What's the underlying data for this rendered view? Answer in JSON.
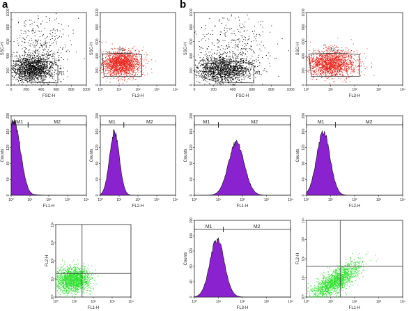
{
  "panel_letters": [
    "a",
    "b"
  ],
  "chart_data": [
    {
      "id": "a1",
      "type": "scatter",
      "xlabel": "FSC-H",
      "ylabel": "SSC-H",
      "xlim": [
        0,
        1000
      ],
      "ylim": [
        0,
        1000
      ],
      "xticks": [
        "0",
        "200",
        "400",
        "600",
        "800",
        "1000"
      ],
      "yticks": [
        "0",
        "200",
        "400",
        "600",
        "800",
        "1000"
      ],
      "gate": "R1",
      "cloud": {
        "center": [
          280,
          230
        ],
        "spread": [
          140,
          90
        ],
        "sparse_center": [
          380,
          520
        ],
        "sparse_spread": [
          200,
          230
        ]
      },
      "colors": {
        "dots": "#000000"
      }
    },
    {
      "id": "a2",
      "type": "scatter",
      "xscale": "log",
      "xlabel": "FL3-H",
      "ylabel": "SSC-H",
      "xlim": [
        0,
        4
      ],
      "ylim": [
        0,
        1000
      ],
      "xticks": [
        "10⁰",
        "10¹",
        "10²",
        "10³",
        "10⁴"
      ],
      "yticks": [
        "0",
        "200",
        "400",
        "600",
        "800",
        "1000"
      ],
      "gate": "R2",
      "cloud": {
        "center": [
          1.1,
          300
        ],
        "spread": [
          0.5,
          90
        ]
      },
      "colors": {
        "dots": "#e8241a"
      }
    },
    {
      "id": "a3",
      "type": "histogram",
      "xscale": "log",
      "xlabel": "FL1-H",
      "ylabel": "Counts",
      "xlim": [
        0,
        4
      ],
      "ylim": [
        0,
        200
      ],
      "xticks": [
        "10⁰",
        "10¹",
        "10²",
        "10³",
        "10⁴"
      ],
      "yticks": [
        "0",
        "40",
        "80",
        "120",
        "160",
        "200"
      ],
      "markers": [
        {
          "name": "M1",
          "range": [
            0.0,
            0.9
          ]
        },
        {
          "name": "M2",
          "range": [
            0.9,
            4.0
          ]
        }
      ],
      "peak": {
        "center": 0.15,
        "width": 0.35,
        "height": 185,
        "tail": 0.25
      },
      "colors": {
        "fill": "#8a22d0"
      }
    },
    {
      "id": "a4",
      "type": "histogram",
      "xscale": "log",
      "xlabel": "FL2-H",
      "ylabel": "Counts",
      "xlim": [
        0,
        4
      ],
      "ylim": [
        0,
        200
      ],
      "xticks": [
        "10⁰",
        "10¹",
        "10²",
        "10³",
        "10⁴"
      ],
      "yticks": [
        "0",
        "40",
        "80",
        "120",
        "160",
        "200"
      ],
      "markers": [
        {
          "name": "M1",
          "range": [
            0.0,
            1.25
          ]
        },
        {
          "name": "M2",
          "range": [
            1.25,
            4.0
          ]
        }
      ],
      "peak": {
        "center": 0.75,
        "width": 0.26,
        "height": 158,
        "tail": 0.0
      },
      "colors": {
        "fill": "#8a22d0"
      }
    },
    {
      "id": "a5",
      "type": "scatter",
      "xscale": "log",
      "yscale": "log",
      "xlabel": "FL1-H",
      "ylabel": "FL2-H",
      "xlim": [
        0,
        4
      ],
      "ylim": [
        0,
        4
      ],
      "xticks": [
        "10⁰",
        "10¹",
        "10²",
        "10³",
        "10⁴"
      ],
      "yticks": [
        "10⁰",
        "10¹",
        "10²",
        "10³",
        "10⁴"
      ],
      "quadrant": [
        1.4,
        1.3
      ],
      "cloud": {
        "center": [
          0.9,
          0.95
        ],
        "spread": [
          0.45,
          0.35
        ]
      },
      "colors": {
        "dots": "#2de02d"
      }
    },
    {
      "id": "b1",
      "type": "scatter",
      "xlabel": "FSC-H",
      "ylabel": "SSC-H",
      "xlim": [
        0,
        1000
      ],
      "ylim": [
        0,
        1000
      ],
      "xticks": [
        "0",
        "200",
        "400",
        "600",
        "800",
        "1000"
      ],
      "yticks": [
        "0",
        "200",
        "400",
        "600",
        "800",
        "1000"
      ],
      "gate": "R1",
      "cloud": {
        "center": [
          300,
          220
        ],
        "spread": [
          150,
          90
        ],
        "sparse_center": [
          400,
          500
        ],
        "sparse_spread": [
          220,
          230
        ]
      },
      "colors": {
        "dots": "#000000"
      }
    },
    {
      "id": "b2",
      "type": "scatter",
      "xscale": "log",
      "xlabel": "FL3-H",
      "ylabel": "SSC-H",
      "xlim": [
        0,
        4
      ],
      "ylim": [
        0,
        1000
      ],
      "xticks": [
        "10⁰",
        "10¹",
        "10²",
        "10³",
        "10⁴"
      ],
      "yticks": [
        "0",
        "200",
        "400",
        "600",
        "800",
        "1000"
      ],
      "gate": "R2",
      "cloud": {
        "center": [
          1.0,
          300
        ],
        "spread": [
          0.55,
          95
        ]
      },
      "colors": {
        "dots": "#e8241a"
      }
    },
    {
      "id": "b3",
      "type": "histogram",
      "xscale": "log",
      "xlabel": "FL1-H",
      "ylabel": "Counts",
      "xlim": [
        0,
        4
      ],
      "ylim": [
        0,
        200
      ],
      "xticks": [
        "10⁰",
        "10¹",
        "10²",
        "10³",
        "10⁴"
      ],
      "yticks": [
        "0",
        "40",
        "80",
        "120",
        "160",
        "200"
      ],
      "markers": [
        {
          "name": "M1",
          "range": [
            0.0,
            1.0
          ]
        },
        {
          "name": "M2",
          "range": [
            1.0,
            4.0
          ]
        }
      ],
      "peak": {
        "center": 1.75,
        "width": 0.33,
        "height": 132,
        "tail": 0.0
      },
      "colors": {
        "fill": "#8a22d0"
      }
    },
    {
      "id": "b4",
      "type": "histogram",
      "xscale": "log",
      "xlabel": "FL2-H",
      "ylabel": "Counts",
      "xlim": [
        0,
        4
      ],
      "ylim": [
        0,
        200
      ],
      "xticks": [
        "10⁰",
        "10¹",
        "10²",
        "10³",
        "10⁴"
      ],
      "yticks": [
        "0",
        "40",
        "80",
        "120",
        "160",
        "200"
      ],
      "markers": [
        {
          "name": "M1",
          "range": [
            0.0,
            1.2
          ]
        },
        {
          "name": "M2",
          "range": [
            1.2,
            4.0
          ]
        }
      ],
      "peak": {
        "center": 0.7,
        "width": 0.28,
        "height": 158,
        "tail": 0.0
      },
      "colors": {
        "fill": "#8a22d0"
      }
    },
    {
      "id": "b5",
      "type": "histogram",
      "xscale": "log",
      "xlabel": "FL3-H",
      "ylabel": "Counts",
      "xlim": [
        0,
        4
      ],
      "ylim": [
        0,
        200
      ],
      "xticks": [
        "10⁰",
        "10¹",
        "10²",
        "10³",
        "10⁴"
      ],
      "yticks": [
        "0",
        "40",
        "80",
        "120",
        "160",
        "200"
      ],
      "markers": [
        {
          "name": "M1",
          "range": [
            0.0,
            1.2
          ]
        },
        {
          "name": "M2",
          "range": [
            1.2,
            4.0
          ]
        }
      ],
      "peak": {
        "center": 0.95,
        "width": 0.3,
        "height": 150,
        "tail": 0.0
      },
      "colors": {
        "fill": "#8a22d0"
      }
    },
    {
      "id": "b6",
      "type": "scatter",
      "xscale": "log",
      "yscale": "log",
      "xlabel": "FL1-H",
      "ylabel": "FL2-H",
      "xlim": [
        0,
        4
      ],
      "ylim": [
        0,
        4
      ],
      "xticks": [
        "10⁰",
        "10¹",
        "10²",
        "10³",
        "10⁴"
      ],
      "yticks": [
        "10⁰",
        "10¹",
        "10²",
        "10³",
        "10⁴"
      ],
      "quadrant": [
        1.4,
        1.6
      ],
      "cloud": {
        "center": [
          1.2,
          0.85
        ],
        "spread": [
          0.5,
          0.3
        ],
        "tilt": 0.75
      },
      "colors": {
        "dots": "#2de02d"
      }
    }
  ]
}
